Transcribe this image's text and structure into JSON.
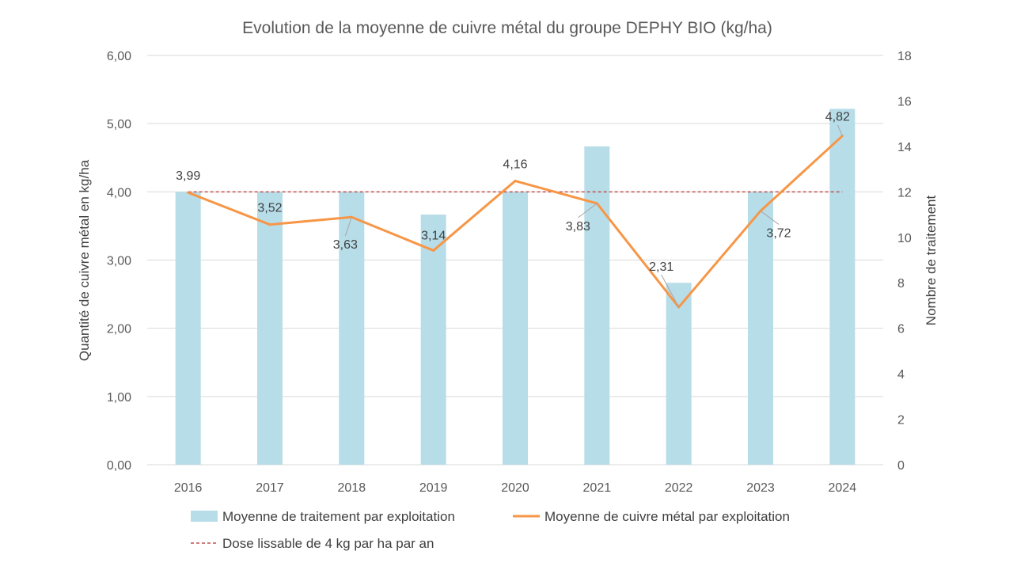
{
  "chart_data": {
    "type": "bar",
    "title": "Evolution de la moyenne de cuivre métal du groupe DEPHY BIO (kg/ha)",
    "categories": [
      "2016",
      "2017",
      "2018",
      "2019",
      "2020",
      "2021",
      "2022",
      "2023",
      "2024"
    ],
    "ylabel": "Quantité de cuivre métal en kg/ha",
    "y2label": "Nombre de traitement",
    "ylim": [
      0,
      6
    ],
    "y2lim": [
      0,
      18
    ],
    "yticks": [
      "0,00",
      "1,00",
      "2,00",
      "3,00",
      "4,00",
      "5,00",
      "6,00"
    ],
    "y2ticks": [
      "0",
      "2",
      "4",
      "6",
      "8",
      "10",
      "12",
      "14",
      "16",
      "18"
    ],
    "series": [
      {
        "name": "Moyenne de traitement par exploitation",
        "kind": "bar",
        "axis": "right",
        "color": "#b7dde8",
        "values": [
          12.0,
          12.0,
          12.0,
          11.0,
          12.0,
          14.0,
          8.0,
          12.0,
          15.65
        ]
      },
      {
        "name": "Moyenne de cuivre métal par exploitation",
        "kind": "line",
        "axis": "left",
        "color": "#f79646",
        "values": [
          3.99,
          3.52,
          3.63,
          3.14,
          4.16,
          3.83,
          2.31,
          3.72,
          4.82
        ],
        "labels": [
          "3,99",
          "3,52",
          "3,63",
          "3,14",
          "4,16",
          "3,83",
          "2,31",
          "3,72",
          "4,82"
        ]
      },
      {
        "name": "Dose lissable de 4 kg par ha par an",
        "kind": "dashed-line",
        "axis": "left",
        "color": "#c0504d",
        "values": [
          4,
          4,
          4,
          4,
          4,
          4,
          4,
          4,
          4
        ]
      }
    ],
    "grid": true,
    "legend": "bottom"
  }
}
